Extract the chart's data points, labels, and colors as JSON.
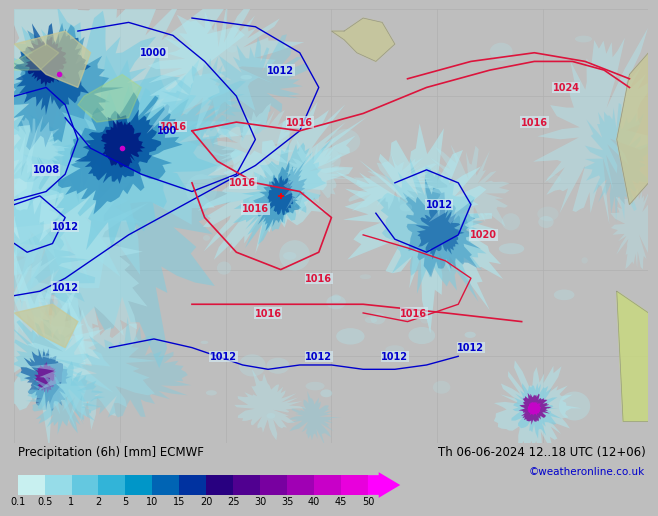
{
  "title": "Precipitation (6h) [mm] ECMWF",
  "date_label": "Th 06-06-2024 12..18 UTC (12+06)",
  "credit": "©weatheronline.co.uk",
  "colorbar_labels": [
    "0.1",
    "0.5",
    "1",
    "2",
    "5",
    "10",
    "15",
    "20",
    "25",
    "30",
    "35",
    "40",
    "45",
    "50"
  ],
  "colorbar_colors": [
    "#c8f0f0",
    "#96dce8",
    "#64c8e0",
    "#32b4d8",
    "#0096c8",
    "#0064b4",
    "#0032a0",
    "#280080",
    "#500090",
    "#7800a0",
    "#a000b4",
    "#c800c8",
    "#e800dc",
    "#ff00ff"
  ],
  "bg_color": "#bebebe",
  "map_bg": "#d2e8f0",
  "land_color": "#c8c896",
  "coast_color": "#808080",
  "blue_isobar": "#0000cd",
  "red_isobar": "#dc143c",
  "grid_color": "#b0b0b0",
  "title_color": "#000000",
  "title_fontsize": 8.5,
  "credit_color": "#0000cc",
  "credit_fontsize": 7.5,
  "label_fontsize": 7,
  "isobar_fontsize": 7
}
